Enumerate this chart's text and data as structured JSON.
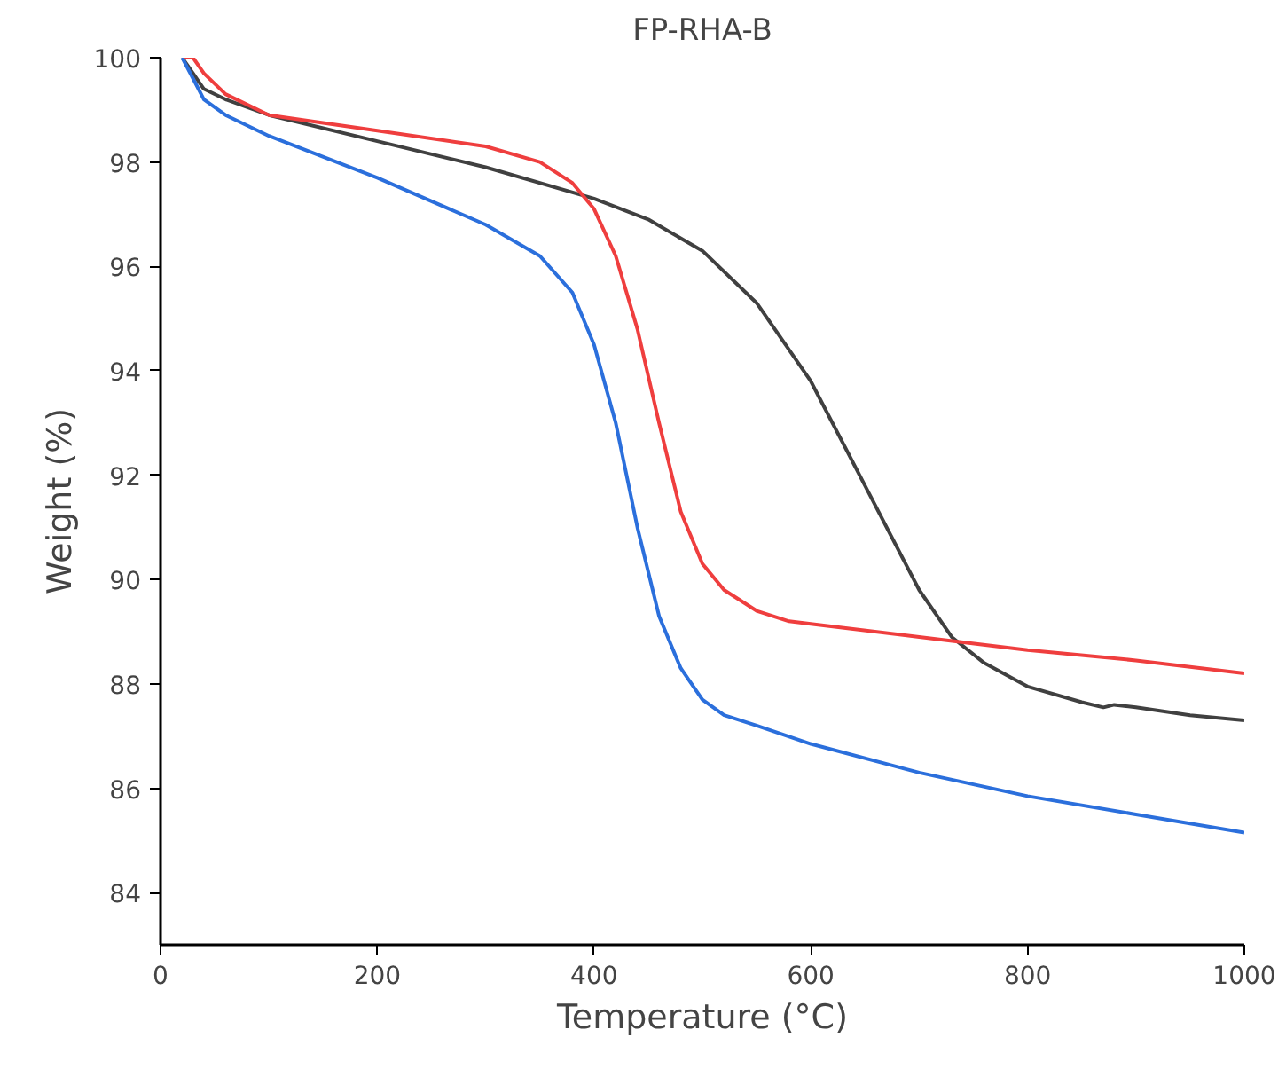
{
  "chart_data": {
    "type": "line",
    "title": "FP-RHA-B",
    "xlabel": "Temperature (°C)",
    "ylabel": "Weight (%)",
    "xlim": [
      0,
      1000
    ],
    "ylim": [
      83,
      100
    ],
    "xticks": [
      0,
      200,
      400,
      600,
      800,
      1000
    ],
    "yticks": [
      84,
      86,
      88,
      90,
      92,
      94,
      96,
      98,
      100
    ],
    "grid": false,
    "marker": "none",
    "line_style": "solid",
    "series": [
      {
        "color": "#404040",
        "x": [
          20,
          30,
          40,
          60,
          100,
          200,
          300,
          400,
          450,
          500,
          550,
          600,
          650,
          700,
          730,
          760,
          800,
          850,
          870,
          880,
          900,
          950,
          1000
        ],
        "values": [
          100,
          99.7,
          99.4,
          99.2,
          98.9,
          98.4,
          97.9,
          97.3,
          96.9,
          96.3,
          95.3,
          93.8,
          91.8,
          89.8,
          88.9,
          88.4,
          87.95,
          87.65,
          87.55,
          87.6,
          87.55,
          87.4,
          87.3
        ]
      },
      {
        "color": "#ef3e3e",
        "x": [
          20,
          30,
          40,
          60,
          100,
          200,
          300,
          350,
          380,
          400,
          420,
          440,
          460,
          480,
          500,
          520,
          550,
          580,
          600,
          700,
          800,
          900,
          1000
        ],
        "values": [
          100,
          100,
          99.7,
          99.3,
          98.9,
          98.6,
          98.3,
          98.0,
          97.6,
          97.1,
          96.2,
          94.8,
          93.0,
          91.3,
          90.3,
          89.8,
          89.4,
          89.2,
          89.15,
          88.9,
          88.65,
          88.45,
          88.2
        ]
      },
      {
        "color": "#2b6fdc",
        "x": [
          20,
          30,
          40,
          60,
          100,
          200,
          300,
          350,
          380,
          400,
          420,
          440,
          460,
          480,
          500,
          520,
          550,
          600,
          700,
          800,
          900,
          1000
        ],
        "values": [
          100,
          99.6,
          99.2,
          98.9,
          98.5,
          97.7,
          96.8,
          96.2,
          95.5,
          94.5,
          93,
          91,
          89.3,
          88.3,
          87.7,
          87.4,
          87.2,
          86.85,
          86.3,
          85.85,
          85.5,
          85.15
        ]
      }
    ]
  }
}
